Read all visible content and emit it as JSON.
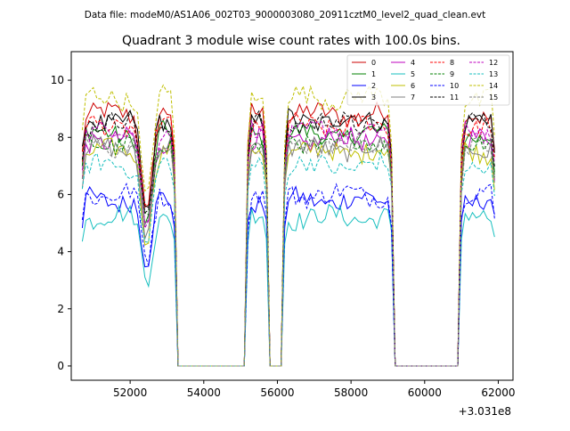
{
  "chart_data": {
    "type": "line",
    "suptitle": "Data file: modeM0/AS1A06_002T03_9000003080_20911cztM0_level2_quad_clean.evt",
    "title": "Quadrant 3 module wise count rates with 100.0s bins.",
    "xlabel": "",
    "ylabel": "",
    "x_offset_label": "+3.031e8",
    "xlim": [
      50400,
      62400
    ],
    "ylim": [
      -0.5,
      11.0
    ],
    "xticks": [
      52000,
      54000,
      56000,
      58000,
      60000,
      62000
    ],
    "xtick_labels": [
      "52000",
      "54000",
      "56000",
      "58000",
      "60000",
      "62000"
    ],
    "yticks": [
      0,
      2,
      4,
      6,
      8,
      10
    ],
    "ytick_labels": [
      "0",
      "2",
      "4",
      "6",
      "8",
      "10"
    ],
    "legend_position": "top-right",
    "segments": [
      {
        "start": 50700,
        "end": 53200,
        "dips": [
          {
            "at": 52450,
            "drop": 0.45
          }
        ]
      },
      {
        "start": 55200,
        "end": 55700,
        "dips": []
      },
      {
        "start": 56200,
        "end": 59100,
        "dips": []
      },
      {
        "start": 61000,
        "end": 61900,
        "dips": []
      }
    ],
    "gap_value": 0,
    "series": [
      {
        "name": "0",
        "color": "#cc0000",
        "dash": false,
        "level": 8.8
      },
      {
        "name": "1",
        "color": "#008000",
        "dash": false,
        "level": 8.1
      },
      {
        "name": "2",
        "color": "#0000ff",
        "dash": false,
        "level": 5.8
      },
      {
        "name": "3",
        "color": "#000000",
        "dash": false,
        "level": 8.6
      },
      {
        "name": "4",
        "color": "#bf00bf",
        "dash": false,
        "level": 7.9
      },
      {
        "name": "5",
        "color": "#17bfbf",
        "dash": false,
        "level": 5.2
      },
      {
        "name": "6",
        "color": "#bfbf00",
        "dash": false,
        "level": 7.5
      },
      {
        "name": "7",
        "color": "#808080",
        "dash": false,
        "level": 7.6
      },
      {
        "name": "8",
        "color": "#ff0000",
        "dash": true,
        "level": 8.4
      },
      {
        "name": "9",
        "color": "#008000",
        "dash": true,
        "level": 7.8
      },
      {
        "name": "10",
        "color": "#0000ff",
        "dash": true,
        "level": 6.0
      },
      {
        "name": "11",
        "color": "#000000",
        "dash": true,
        "level": 8.5
      },
      {
        "name": "12",
        "color": "#bf00bf",
        "dash": true,
        "level": 8.2
      },
      {
        "name": "13",
        "color": "#17bfbf",
        "dash": true,
        "level": 7.0
      },
      {
        "name": "14",
        "color": "#bfbf00",
        "dash": true,
        "level": 9.4
      },
      {
        "name": "15",
        "color": "#808080",
        "dash": true,
        "level": 7.7
      }
    ]
  }
}
